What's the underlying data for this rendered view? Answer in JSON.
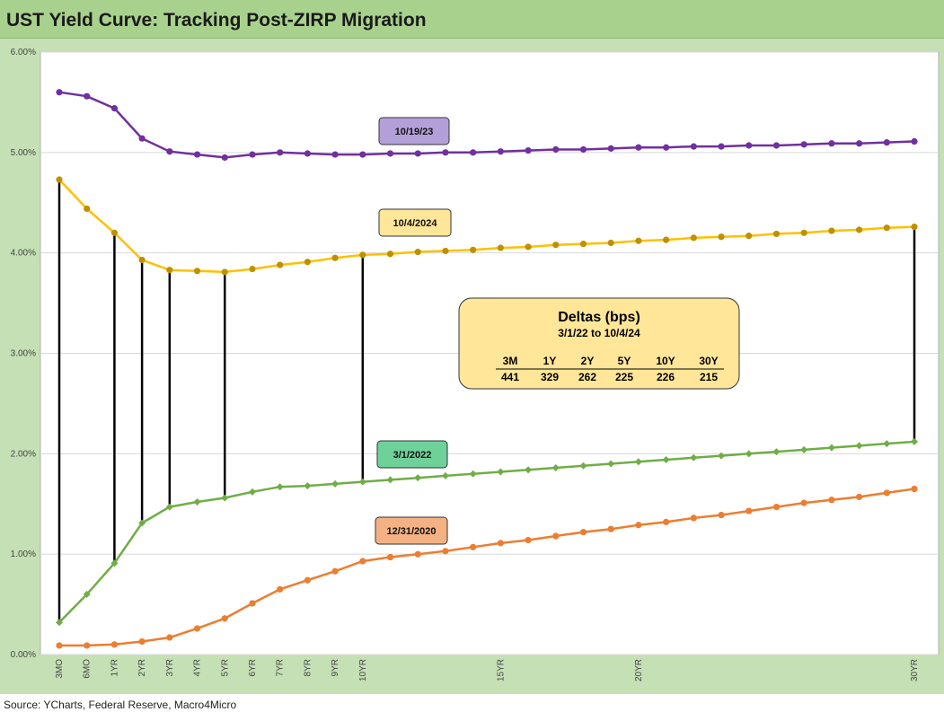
{
  "title": "UST Yield Curve: Tracking Post-ZIRP Migration",
  "source": "Source: YCharts, Federal Reserve, Macro4Micro",
  "chart_data": {
    "type": "line",
    "x": [
      "3MO",
      "6MO",
      "1YR",
      "2YR",
      "3YR",
      "4YR",
      "5YR",
      "6YR",
      "7YR",
      "8YR",
      "9YR",
      "10YR",
      "11YR",
      "12YR",
      "13YR",
      "14YR",
      "15YR",
      "16YR",
      "17YR",
      "18YR",
      "19YR",
      "20YR",
      "21YR",
      "22YR",
      "23YR",
      "24YR",
      "25YR",
      "26YR",
      "27YR",
      "28YR",
      "29YR",
      "30YR"
    ],
    "x_tick_labels": [
      "3MO",
      "6MO",
      "1YR",
      "2YR",
      "3YR",
      "4YR",
      "5YR",
      "6YR",
      "7YR",
      "8YR",
      "9YR",
      "10YR",
      "",
      "",
      "",
      "",
      "15YR",
      "",
      "",
      "",
      "",
      "20YR",
      "",
      "",
      "",
      "",
      "",
      "",
      "",
      "",
      "",
      "30YR"
    ],
    "ylim": [
      0,
      6
    ],
    "y_ticks": [
      0,
      1,
      2,
      3,
      4,
      5,
      6
    ],
    "y_tick_labels": [
      "0.00%",
      "1.00%",
      "2.00%",
      "3.00%",
      "4.00%",
      "5.00%",
      "6.00%"
    ],
    "grid": "horizontal",
    "series": [
      {
        "name": "10/19/23",
        "color": "#7030a0",
        "marker": "circle",
        "label_box": "#b4a0d8",
        "values": [
          5.6,
          5.56,
          5.44,
          5.14,
          5.01,
          4.98,
          4.95,
          4.98,
          5.0,
          4.99,
          4.98,
          4.98,
          4.99,
          4.99,
          5.0,
          5.0,
          5.01,
          5.02,
          5.03,
          5.03,
          5.04,
          5.05,
          5.05,
          5.06,
          5.06,
          5.07,
          5.07,
          5.08,
          5.09,
          5.09,
          5.1,
          5.11
        ]
      },
      {
        "name": "10/4/2024",
        "color": "#ffc000",
        "marker_color": "#bf9000",
        "marker": "circle",
        "label_box": "#ffe699",
        "values": [
          4.73,
          4.44,
          4.2,
          3.93,
          3.83,
          3.82,
          3.81,
          3.84,
          3.88,
          3.91,
          3.95,
          3.98,
          3.99,
          4.01,
          4.02,
          4.03,
          4.05,
          4.06,
          4.08,
          4.09,
          4.1,
          4.12,
          4.13,
          4.15,
          4.16,
          4.17,
          4.19,
          4.2,
          4.22,
          4.23,
          4.25,
          4.26
        ]
      },
      {
        "name": "3/1/2022",
        "color": "#70ad47",
        "marker": "diamond",
        "label_box": "#6fd19a",
        "values": [
          0.32,
          0.6,
          0.91,
          1.31,
          1.47,
          1.52,
          1.56,
          1.62,
          1.67,
          1.68,
          1.7,
          1.72,
          1.74,
          1.76,
          1.78,
          1.8,
          1.82,
          1.84,
          1.86,
          1.88,
          1.9,
          1.92,
          1.94,
          1.96,
          1.98,
          2.0,
          2.02,
          2.04,
          2.06,
          2.08,
          2.1,
          2.12
        ]
      },
      {
        "name": "12/31/2020",
        "color": "#ed7d31",
        "marker": "circle",
        "label_box": "#f4b183",
        "values": [
          0.09,
          0.09,
          0.1,
          0.13,
          0.17,
          0.26,
          0.36,
          0.51,
          0.65,
          0.74,
          0.83,
          0.93,
          0.97,
          1.0,
          1.03,
          1.07,
          1.11,
          1.14,
          1.18,
          1.22,
          1.25,
          1.29,
          1.32,
          1.36,
          1.39,
          1.43,
          1.47,
          1.51,
          1.54,
          1.57,
          1.61,
          1.65
        ]
      }
    ],
    "delta_lines_x": [
      "3MO",
      "1YR",
      "2YR",
      "3YR",
      "5YR",
      "10YR",
      "30YR"
    ],
    "deltas_table": {
      "title": "Deltas (bps)",
      "subtitle": "3/1/22  to 10/4/24",
      "headers": [
        "3M",
        "1Y",
        "2Y",
        "5Y",
        "10Y",
        "30Y"
      ],
      "values": [
        "441",
        "329",
        "262",
        "225",
        "226",
        "215"
      ],
      "box_color": "#ffe699"
    }
  }
}
